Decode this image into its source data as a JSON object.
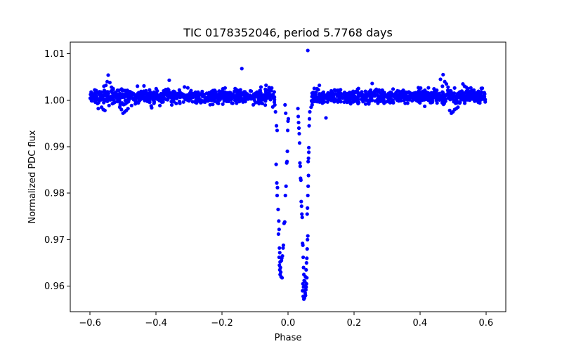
{
  "chart_data": {
    "type": "scatter",
    "title": "TIC 0178352046, period 5.7768 days",
    "xlabel": "Phase",
    "ylabel": "Normalized PDC flux",
    "xlim": [
      -0.66,
      0.66
    ],
    "ylim": [
      0.9545,
      1.0125
    ],
    "xticks": [
      -0.6,
      -0.4,
      -0.2,
      0.0,
      0.2,
      0.4,
      0.6
    ],
    "xtick_labels": [
      "−0.6",
      "−0.4",
      "−0.2",
      "0.0",
      "0.2",
      "0.4",
      "0.6"
    ],
    "yticks": [
      0.96,
      0.97,
      0.98,
      0.99,
      1.0,
      1.01
    ],
    "ytick_labels": [
      "0.96",
      "0.97",
      "0.98",
      "0.99",
      "1.00",
      "1.01"
    ],
    "grid": false,
    "marker_color": "#0000ff",
    "series": [
      {
        "baseline": {
          "x_range": [
            -0.6,
            0.6
          ],
          "y_center": 1.0008,
          "y_scatter": 0.0011,
          "point_count": 1400
        },
        "points": [
          [
            -0.545,
            1.0054
          ],
          [
            -0.548,
            1.004
          ],
          [
            -0.54,
            1.0038
          ],
          [
            -0.552,
            1.0032
          ],
          [
            -0.535,
            1.0028
          ],
          [
            -0.558,
            1.003
          ],
          [
            -0.53,
            1.0025
          ],
          [
            -0.565,
            0.9985
          ],
          [
            -0.56,
            0.998
          ],
          [
            -0.555,
            0.9978
          ],
          [
            -0.575,
            0.9982
          ],
          [
            -0.5,
            0.9972
          ],
          [
            -0.495,
            0.9975
          ],
          [
            -0.505,
            0.998
          ],
          [
            -0.49,
            0.9978
          ],
          [
            -0.51,
            0.9985
          ],
          [
            -0.485,
            0.9982
          ],
          [
            -0.36,
            1.0043
          ],
          [
            -0.14,
            1.0068
          ],
          [
            0.06,
            1.0107
          ],
          [
            0.47,
            1.0055
          ],
          [
            0.462,
            1.0045
          ],
          [
            0.475,
            1.004
          ],
          [
            0.48,
            1.0035
          ],
          [
            0.468,
            1.003
          ],
          [
            0.485,
            1.0028
          ],
          [
            0.505,
            0.998
          ],
          [
            0.5,
            0.9975
          ],
          [
            0.495,
            0.9972
          ],
          [
            0.51,
            0.9982
          ],
          [
            0.515,
            0.9985
          ],
          [
            0.49,
            0.9978
          ],
          [
            0.53,
            1.0035
          ],
          [
            0.535,
            1.003
          ],
          [
            0.54,
            1.0028
          ],
          [
            0.545,
            1.0025
          ],
          [
            0.115,
            0.9962
          ],
          [
            0.255,
            1.0036
          ],
          [
            0.095,
            1.0032
          ],
          [
            -0.04,
            0.999
          ],
          [
            -0.038,
            0.9975
          ],
          [
            -0.035,
            0.9945
          ],
          [
            -0.033,
            0.9935
          ],
          [
            -0.036,
            0.9862
          ],
          [
            -0.034,
            0.9822
          ],
          [
            -0.032,
            0.9812
          ],
          [
            -0.033,
            0.9795
          ],
          [
            -0.03,
            0.9765
          ],
          [
            -0.028,
            0.974
          ],
          [
            -0.027,
            0.9722
          ],
          [
            -0.029,
            0.9712
          ],
          [
            -0.026,
            0.9682
          ],
          [
            -0.025,
            0.9672
          ],
          [
            -0.027,
            0.9662
          ],
          [
            -0.024,
            0.9652
          ],
          [
            -0.026,
            0.9645
          ],
          [
            -0.023,
            0.964
          ],
          [
            -0.025,
            0.9635
          ],
          [
            -0.022,
            0.963
          ],
          [
            -0.024,
            0.9625
          ],
          [
            -0.021,
            0.962
          ],
          [
            -0.018,
            0.9618
          ],
          [
            -0.02,
            0.9655
          ],
          [
            -0.019,
            0.966
          ],
          [
            -0.017,
            0.9665
          ],
          [
            -0.015,
            0.9682
          ],
          [
            -0.014,
            0.9688
          ],
          [
            -0.012,
            0.9735
          ],
          [
            -0.01,
            0.9738
          ],
          [
            -0.008,
            0.9795
          ],
          [
            -0.006,
            0.9815
          ],
          [
            -0.004,
            0.9865
          ],
          [
            -0.003,
            0.9868
          ],
          [
            -0.002,
            0.989
          ],
          [
            -0.001,
            0.9935
          ],
          [
            0.0,
            0.9955
          ],
          [
            0.001,
            0.996
          ],
          [
            -0.009,
            0.999
          ],
          [
            -0.007,
            0.9972
          ],
          [
            0.03,
            0.9982
          ],
          [
            0.031,
            0.9965
          ],
          [
            0.032,
            0.9952
          ],
          [
            0.033,
            0.994
          ],
          [
            0.034,
            0.9928
          ],
          [
            0.035,
            0.9908
          ],
          [
            0.036,
            0.9865
          ],
          [
            0.037,
            0.9858
          ],
          [
            0.038,
            0.9832
          ],
          [
            0.039,
            0.9828
          ],
          [
            0.04,
            0.9782
          ],
          [
            0.041,
            0.9772
          ],
          [
            0.042,
            0.9755
          ],
          [
            0.043,
            0.9748
          ],
          [
            0.044,
            0.9692
          ],
          [
            0.045,
            0.9688
          ],
          [
            0.046,
            0.9662
          ],
          [
            0.047,
            0.964
          ],
          [
            0.048,
            0.9625
          ],
          [
            0.049,
            0.9612
          ],
          [
            0.05,
            0.96
          ],
          [
            0.051,
            0.959
          ],
          [
            0.052,
            0.9585
          ],
          [
            0.053,
            0.958
          ],
          [
            0.054,
            0.9592
          ],
          [
            0.055,
            0.9598
          ],
          [
            0.056,
            0.9605
          ],
          [
            0.057,
            0.9618
          ],
          [
            0.046,
            0.9578
          ],
          [
            0.048,
            0.9572
          ],
          [
            0.05,
            0.9575
          ],
          [
            0.044,
            0.959
          ],
          [
            0.047,
            0.9598
          ],
          [
            0.051,
            0.961
          ],
          [
            0.053,
            0.962
          ],
          [
            0.045,
            0.9605
          ],
          [
            0.055,
            0.9635
          ],
          [
            0.056,
            0.965
          ],
          [
            0.057,
            0.966
          ],
          [
            0.058,
            0.968
          ],
          [
            0.059,
            0.97
          ],
          [
            0.06,
            0.9708
          ],
          [
            0.058,
            0.9755
          ],
          [
            0.059,
            0.9768
          ],
          [
            0.06,
            0.9795
          ],
          [
            0.061,
            0.9815
          ],
          [
            0.062,
            0.9838
          ],
          [
            0.061,
            0.9868
          ],
          [
            0.062,
            0.9875
          ],
          [
            0.063,
            0.9888
          ],
          [
            0.063,
            0.9898
          ],
          [
            0.064,
            0.9945
          ],
          [
            0.065,
            0.996
          ],
          [
            0.066,
            0.9975
          ],
          [
            0.07,
            0.9985
          ],
          [
            0.073,
            0.999
          ]
        ]
      }
    ]
  }
}
